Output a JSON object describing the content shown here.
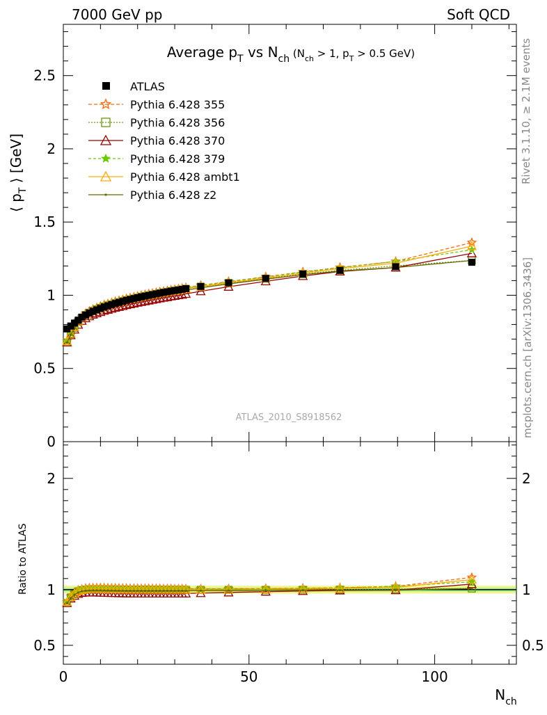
{
  "chart_data": {
    "type": "line",
    "header_left": "7000 GeV pp",
    "header_right": "Soft QCD",
    "title": {
      "main": "Average p",
      "main_sub": "T",
      "mid": " vs N",
      "mid_sub": "ch",
      "cond_open": " (N",
      "cond_sub1": "ch",
      "cond_mid": " > 1, p",
      "cond_sub2": "T",
      "cond_close": " > 0.5 GeV)"
    },
    "ylabel_parts": {
      "open": "⟨ p",
      "sub": "T",
      "close": " ⟩  [GeV]"
    },
    "ratio_ylabel": "Ratio to ATLAS",
    "xlabel": {
      "main": "N",
      "sub": "ch"
    },
    "side_label_rivet": "Rivet 3.1.10, ≥ 2.1M events",
    "side_label_mcplots": "mcplots.cern.ch [arXiv:1306.3436]",
    "watermark": "ATLAS_2010_S8918562",
    "xlim": [
      0,
      122
    ],
    "ylim": [
      0,
      2.85
    ],
    "ratio_ylim": [
      0.33,
      2.33
    ],
    "x_ticks": [
      0,
      50,
      100
    ],
    "y_ticks": [
      0,
      0.5,
      1,
      1.5,
      2,
      2.5
    ],
    "y_tick_labels": [
      "0",
      "0.5",
      "1",
      "1.5",
      "2",
      "2.5"
    ],
    "ratio_ticks": [
      0.5,
      1,
      2
    ],
    "ratio_tick_labels": [
      "0.5",
      "1",
      "2"
    ],
    "legend_position": "top-left",
    "data": {
      "name": "ATLAS",
      "x": [
        1,
        2,
        3,
        4,
        5,
        6,
        7,
        8,
        9,
        10,
        11,
        12,
        13,
        14,
        15,
        16,
        17,
        18,
        19,
        20,
        21,
        22,
        23,
        24,
        25,
        26,
        27,
        28,
        29,
        30,
        31,
        32,
        33,
        37,
        44.5,
        54.5,
        64.5,
        74.5,
        89.5,
        110
      ],
      "y": [
        0.77,
        0.79,
        0.81,
        0.83,
        0.85,
        0.865,
        0.878,
        0.89,
        0.9,
        0.91,
        0.92,
        0.928,
        0.936,
        0.944,
        0.951,
        0.958,
        0.965,
        0.971,
        0.977,
        0.983,
        0.989,
        0.994,
        0.999,
        1.004,
        1.009,
        1.014,
        1.019,
        1.023,
        1.028,
        1.032,
        1.036,
        1.04,
        1.045,
        1.06,
        1.085,
        1.115,
        1.145,
        1.17,
        1.195,
        1.225
      ],
      "band_inner": 0.015,
      "band_outer": 0.035
    },
    "series": [
      {
        "name": "Pythia 6.428 355",
        "color": "#ff6600",
        "dash": "5,3",
        "marker": "star",
        "ratio": [
          0.89,
          0.94,
          0.97,
          0.995,
          1.005,
          1.012,
          1.015,
          1.016,
          1.016,
          1.016,
          1.016,
          1.015,
          1.014,
          1.014,
          1.013,
          1.012,
          1.012,
          1.011,
          1.011,
          1.011,
          1.01,
          1.01,
          1.01,
          1.009,
          1.009,
          1.009,
          1.008,
          1.008,
          1.008,
          1.007,
          1.007,
          1.007,
          1.007,
          1.007,
          1.008,
          1.01,
          1.013,
          1.017,
          1.03,
          1.11
        ]
      },
      {
        "name": "Pythia 6.428 356",
        "color": "#669900",
        "dash": "2,2",
        "marker": "square",
        "ratio": [
          0.88,
          0.93,
          0.96,
          0.985,
          0.995,
          1.0,
          1.003,
          1.004,
          1.004,
          1.004,
          1.003,
          1.003,
          1.002,
          1.002,
          1.001,
          1.001,
          1.001,
          1.0,
          1.0,
          1.0,
          1.0,
          1.0,
          0.999,
          0.999,
          0.999,
          0.999,
          0.999,
          0.999,
          0.999,
          0.999,
          0.999,
          0.999,
          0.999,
          0.998,
          0.998,
          0.998,
          0.999,
          1.0,
          1.005,
          1.01
        ]
      },
      {
        "name": "Pythia 6.428 370",
        "color": "#990000",
        "dash": "",
        "marker": "triangle",
        "ratio": [
          0.88,
          0.92,
          0.945,
          0.962,
          0.971,
          0.974,
          0.975,
          0.975,
          0.974,
          0.973,
          0.972,
          0.971,
          0.97,
          0.969,
          0.968,
          0.967,
          0.967,
          0.966,
          0.966,
          0.966,
          0.965,
          0.965,
          0.965,
          0.965,
          0.965,
          0.965,
          0.965,
          0.965,
          0.965,
          0.965,
          0.965,
          0.965,
          0.966,
          0.969,
          0.975,
          0.982,
          0.988,
          0.993,
          0.995,
          1.05
        ]
      },
      {
        "name": "Pythia 6.428 379",
        "color": "#66cc00",
        "dash": "4,3",
        "marker": "star-filled",
        "ratio": [
          0.89,
          0.935,
          0.965,
          0.99,
          1.0,
          1.006,
          1.009,
          1.01,
          1.01,
          1.01,
          1.01,
          1.009,
          1.009,
          1.008,
          1.008,
          1.007,
          1.007,
          1.007,
          1.006,
          1.006,
          1.006,
          1.006,
          1.005,
          1.005,
          1.005,
          1.005,
          1.005,
          1.004,
          1.004,
          1.004,
          1.004,
          1.004,
          1.004,
          1.004,
          1.006,
          1.008,
          1.011,
          1.015,
          1.03,
          1.07
        ]
      },
      {
        "name": "Pythia 6.428 ambt1",
        "color": "#ffaa00",
        "dash": "",
        "marker": "triangle",
        "ratio": [
          0.89,
          0.935,
          0.965,
          0.988,
          0.998,
          1.003,
          1.005,
          1.006,
          1.006,
          1.005,
          1.005,
          1.004,
          1.004,
          1.003,
          1.003,
          1.002,
          1.002,
          1.002,
          1.001,
          1.001,
          1.001,
          1.001,
          1.0,
          1.0,
          1.0,
          1.0,
          1.0,
          1.0,
          1.0,
          1.0,
          1.0,
          1.0,
          1.0,
          0.999,
          1.0,
          1.002,
          1.005,
          1.01,
          1.02,
          1.09
        ]
      },
      {
        "name": "Pythia 6.428 z2",
        "color": "#666600",
        "dash": "",
        "marker": "dot",
        "ratio": [
          0.88,
          0.925,
          0.955,
          0.975,
          0.986,
          0.991,
          0.993,
          0.994,
          0.994,
          0.994,
          0.993,
          0.993,
          0.992,
          0.992,
          0.991,
          0.991,
          0.99,
          0.99,
          0.99,
          0.99,
          0.99,
          0.99,
          0.99,
          0.99,
          0.99,
          0.99,
          0.99,
          0.99,
          0.99,
          0.99,
          0.99,
          0.99,
          0.99,
          0.991,
          0.993,
          0.995,
          0.996,
          0.996,
          0.995,
          1.01
        ]
      }
    ]
  }
}
